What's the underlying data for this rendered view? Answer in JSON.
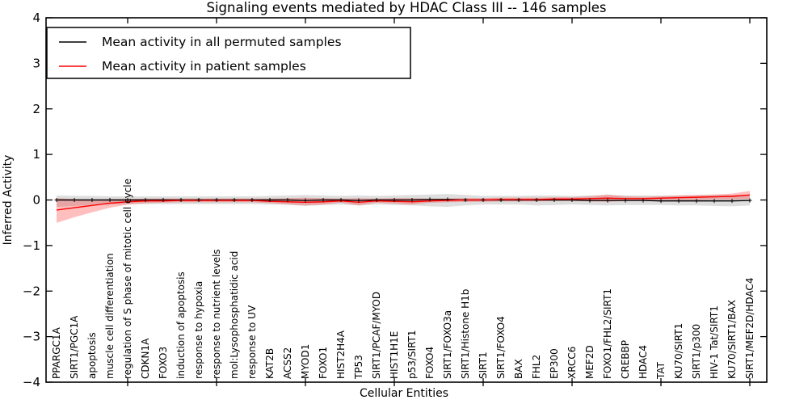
{
  "figure": {
    "background": "#ffffff",
    "frame_color": "#000000"
  },
  "chart_data": {
    "type": "line",
    "title": "Signaling events mediated by HDAC Class III -- 146 samples",
    "xlabel": "Cellular Entities",
    "ylabel": "Inferred Activity",
    "ylim": [
      -4,
      4
    ],
    "yticks": [
      -4,
      -3,
      -2,
      -1,
      0,
      1,
      2,
      3,
      4
    ],
    "ytick_labels": [
      "−4",
      "−3",
      "−2",
      "−1",
      "0",
      "1",
      "2",
      "3",
      "4"
    ],
    "grid": false,
    "legend_position": "upper left",
    "x_major_tick_indices": [
      4,
      9,
      14,
      19,
      24,
      29,
      34,
      39
    ],
    "categories": [
      "PPARGC1A",
      "SIRT1/PGC1A",
      "apoptosis",
      "muscle cell differentiation",
      "regulation of S phase of mitotic cell cycle",
      "CDKN1A",
      "FOXO3",
      "induction of apoptosis",
      "response to hypoxia",
      "response to nutrient levels",
      "mol:Lysophosphatidic acid",
      "response to UV",
      "KAT2B",
      "ACSS2",
      "MYOD1",
      "FOXO1",
      "HIST2H4A",
      "TP53",
      "SIRT1/PCAF/MYOD",
      "HIST1H1E",
      "p53/SIRT1",
      "FOXO4",
      "SIRT1/FOXO3a",
      "SIRT1/Histone H1b",
      "SIRT1",
      "SIRT1/FOXO4",
      "BAX",
      "FHL2",
      "EP300",
      "XRCC6",
      "MEF2D",
      "FOXO1/FHL2/SIRT1",
      "CREBBP",
      "HDAC4",
      "TAT",
      "KU70/SIRT1",
      "SIRT1/p300",
      "HIV-1 Tat/SIRT1",
      "KU70/SIRT1/BAX",
      "SIRT1/MEF2D/HDAC4"
    ],
    "series": [
      {
        "name": "Mean activity in all permuted samples",
        "color": "#000000",
        "marker": "+",
        "band_color": "#000000",
        "band_opacity": 0.13,
        "values": [
          0,
          0,
          0,
          0,
          0,
          0,
          0,
          0,
          0,
          0,
          0,
          0,
          0,
          0,
          -0.01,
          0,
          0,
          -0.01,
          0,
          0,
          0,
          0.01,
          0.01,
          0,
          0,
          0,
          0,
          0,
          0,
          0,
          -0.01,
          -0.01,
          -0.01,
          -0.01,
          -0.02,
          -0.02,
          -0.02,
          -0.02,
          -0.02,
          -0.01
        ],
        "band_low": [
          -0.15,
          -0.13,
          -0.11,
          -0.1,
          -0.09,
          -0.09,
          -0.09,
          -0.09,
          -0.09,
          -0.09,
          -0.09,
          -0.09,
          -0.1,
          -0.11,
          -0.13,
          -0.11,
          -0.1,
          -0.12,
          -0.1,
          -0.11,
          -0.12,
          -0.14,
          -0.15,
          -0.12,
          -0.1,
          -0.1,
          -0.1,
          -0.12,
          -0.11,
          -0.1,
          -0.11,
          -0.12,
          -0.11,
          -0.11,
          -0.11,
          -0.12,
          -0.12,
          -0.13,
          -0.14,
          -0.12
        ],
        "band_high": [
          0.1,
          0.09,
          0.09,
          0.08,
          0.08,
          0.08,
          0.08,
          0.08,
          0.08,
          0.08,
          0.08,
          0.08,
          0.09,
          0.1,
          0.11,
          0.1,
          0.09,
          0.1,
          0.09,
          0.1,
          0.11,
          0.12,
          0.13,
          0.11,
          0.09,
          0.09,
          0.09,
          0.1,
          0.1,
          0.09,
          0.1,
          0.11,
          0.1,
          0.1,
          0.1,
          0.1,
          0.1,
          0.11,
          0.11,
          0.1
        ]
      },
      {
        "name": "Mean activity in patient samples",
        "color": "#ff0000",
        "marker": "none",
        "band_color": "#ff0000",
        "band_opacity": 0.25,
        "values": [
          -0.22,
          -0.17,
          -0.12,
          -0.07,
          -0.04,
          -0.02,
          -0.02,
          -0.01,
          -0.01,
          -0.01,
          -0.01,
          -0.01,
          -0.03,
          -0.04,
          -0.05,
          -0.04,
          -0.02,
          -0.05,
          -0.02,
          -0.03,
          -0.04,
          -0.02,
          -0.01,
          0,
          0,
          0.01,
          0.01,
          0.01,
          0.02,
          0.02,
          0.03,
          0.04,
          0.03,
          0.03,
          0.04,
          0.05,
          0.06,
          0.07,
          0.08,
          0.11
        ],
        "band_low": [
          -0.5,
          -0.38,
          -0.27,
          -0.17,
          -0.1,
          -0.07,
          -0.06,
          -0.05,
          -0.05,
          -0.05,
          -0.05,
          -0.05,
          -0.07,
          -0.09,
          -0.12,
          -0.1,
          -0.06,
          -0.12,
          -0.06,
          -0.08,
          -0.1,
          -0.06,
          -0.05,
          -0.04,
          -0.04,
          -0.03,
          -0.03,
          -0.03,
          -0.02,
          -0.02,
          -0.03,
          -0.04,
          -0.02,
          -0.01,
          0,
          0,
          0,
          0.01,
          0.01,
          0.02
        ],
        "band_high": [
          0.04,
          0.02,
          0.01,
          0.02,
          0.02,
          0.03,
          0.03,
          0.03,
          0.03,
          0.03,
          0.03,
          0.03,
          0.03,
          0.04,
          0.05,
          0.04,
          0.03,
          0.04,
          0.03,
          0.04,
          0.04,
          0.03,
          0.03,
          0.04,
          0.04,
          0.05,
          0.05,
          0.05,
          0.06,
          0.06,
          0.08,
          0.12,
          0.08,
          0.07,
          0.08,
          0.1,
          0.11,
          0.12,
          0.14,
          0.2
        ]
      }
    ]
  },
  "legend": {
    "entries": [
      {
        "label": "Mean activity in all permuted samples",
        "color": "#000000"
      },
      {
        "label": "Mean activity in patient samples",
        "color": "#ff0000"
      }
    ]
  }
}
